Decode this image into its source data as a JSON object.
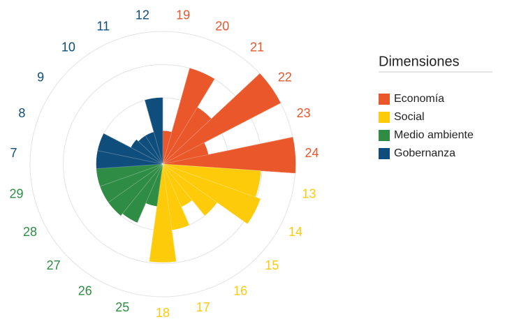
{
  "chart_data": {
    "type": "polar-bar",
    "legend_title": "Dimensiones",
    "rlim": [
      0,
      100
    ],
    "rticks": [
      50,
      75,
      100
    ],
    "grid": true,
    "series": [
      {
        "name": "Economía",
        "color": "#e9572b",
        "categories": [
          "19",
          "20",
          "21",
          "22",
          "23",
          "24"
        ],
        "values": [
          25,
          75,
          50,
          100,
          35,
          100
        ]
      },
      {
        "name": "Social",
        "color": "#fdcb0a",
        "categories": [
          "13",
          "14",
          "15",
          "16",
          "17",
          "18"
        ],
        "values": [
          74,
          78,
          50,
          35,
          50,
          74
        ]
      },
      {
        "name": "Medio ambiente",
        "color": "#2f8c44",
        "categories": [
          "25",
          "26",
          "27",
          "28",
          "29"
        ],
        "values": [
          32,
          48,
          50,
          50,
          50
        ]
      },
      {
        "name": "Gobernanza",
        "color": "#0f4d7c",
        "categories": [
          "7",
          "8",
          "9",
          "10",
          "11",
          "12"
        ],
        "values": [
          50,
          50,
          27,
          25,
          25,
          50
        ]
      }
    ]
  }
}
